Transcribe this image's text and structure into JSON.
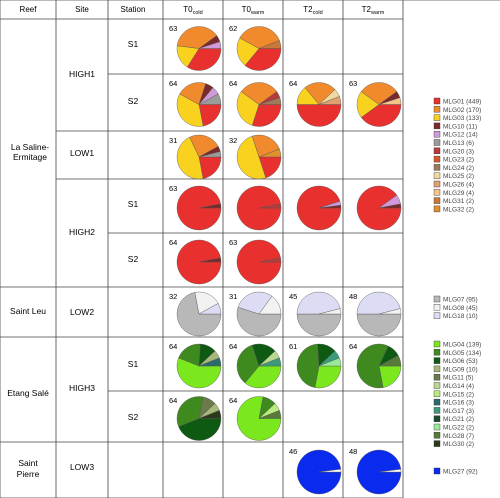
{
  "header": {
    "reef": "Reef",
    "site": "Site",
    "station": "Station",
    "t0_cold": "T0",
    "t0_cold_sub": "cold",
    "t0_warm": "T0",
    "t0_warm_sub": "warm",
    "t2_cold": "T2",
    "t2_cold_sub": "cold",
    "t2_warm": "T2",
    "t2_warm_sub": "warm"
  },
  "reefs": [
    {
      "name_line1": "La Saline-",
      "name_line2": "Ermitage"
    },
    {
      "name_line1": "Saint Leu",
      "name_line2": ""
    },
    {
      "name_line1": "Etang Salé",
      "name_line2": ""
    },
    {
      "name_line1": "Saint",
      "name_line2": "Pierre"
    }
  ],
  "sites": [
    "HIGH1",
    "LOW1",
    "HIGH2",
    "LOW2",
    "HIGH3",
    "LOW3"
  ],
  "stations": [
    "S1",
    "S2",
    "S1",
    "S2",
    "S1",
    "S2"
  ],
  "counts": {
    "r0": [
      "63",
      "62",
      "",
      ""
    ],
    "r1": [
      "64",
      "64",
      "64",
      "63"
    ],
    "r2": [
      "31",
      "32",
      "",
      ""
    ],
    "r3": [
      "63",
      "",
      "",
      ""
    ],
    "r4": [
      "64",
      "63",
      "",
      ""
    ],
    "r5": [
      "32",
      "31",
      "45",
      "48"
    ],
    "r6": [
      "64",
      "64",
      "61",
      "64"
    ],
    "r7": [
      "64",
      "64",
      "",
      ""
    ],
    "r8": [
      "",
      "",
      "46",
      "48"
    ]
  },
  "legends": {
    "clade_c": [
      {
        "label": "MLG01 (449)",
        "color": "#e8302e"
      },
      {
        "label": "MLG02 (170)",
        "color": "#f08a2c"
      },
      {
        "label": "MLG03 (133)",
        "color": "#f8d21e"
      },
      {
        "label": "MLG10 (11)",
        "color": "#7a2a2a"
      },
      {
        "label": "MLG12 (14)",
        "color": "#d09ad8"
      },
      {
        "label": "MLG13 (6)",
        "color": "#9b9b9b"
      },
      {
        "label": "MLG20 (3)",
        "color": "#b83a3a"
      },
      {
        "label": "MLG23 (2)",
        "color": "#d45a2a"
      },
      {
        "label": "MLG24 (2)",
        "color": "#a07a5a"
      },
      {
        "label": "MLG25 (2)",
        "color": "#f0d8a0"
      },
      {
        "label": "MLG26 (4)",
        "color": "#e0a070"
      },
      {
        "label": "MLG29 (4)",
        "color": "#f4c488"
      },
      {
        "label": "MLG31 (2)",
        "color": "#c87838"
      },
      {
        "label": "MLG32 (2)",
        "color": "#e0902a"
      }
    ],
    "clade_gray": [
      {
        "label": "MLG07 (95)",
        "color": "#b8b8b8"
      },
      {
        "label": "MLG08 (45)",
        "color": "#f2f2f2"
      },
      {
        "label": "MLG18 (10)",
        "color": "#dcdcf4"
      }
    ],
    "clade_green": [
      {
        "label": "MLG04 (139)",
        "color": "#7be81e"
      },
      {
        "label": "MLG05 (134)",
        "color": "#3f8a1e"
      },
      {
        "label": "MLG06 (53)",
        "color": "#0e5a12"
      },
      {
        "label": "MLG09 (10)",
        "color": "#a8b878"
      },
      {
        "label": "MLG11 (5)",
        "color": "#6a7a4a"
      },
      {
        "label": "MLG14 (4)",
        "color": "#b8d890"
      },
      {
        "label": "MLG15 (2)",
        "color": "#b8ec7c"
      },
      {
        "label": "MLG16 (3)",
        "color": "#2a6a6a"
      },
      {
        "label": "MLG17 (3)",
        "color": "#3a9a7a"
      },
      {
        "label": "MLG21 (2)",
        "color": "#1a4a2a"
      },
      {
        "label": "MLG22 (2)",
        "color": "#9ae89a"
      },
      {
        "label": "MLG28 (7)",
        "color": "#587a38"
      },
      {
        "label": "MLG30 (2)",
        "color": "#2a3a1a"
      }
    ],
    "clade_blue": [
      {
        "label": "MLG27 (92)",
        "color": "#0a2aee"
      }
    ]
  },
  "pies": [
    {
      "row": 0,
      "col": 0,
      "slices": [
        {
          "c": "#e8302e",
          "v": 0.34
        },
        {
          "c": "#f8d21e",
          "v": 0.18
        },
        {
          "c": "#f08a2c",
          "v": 0.38
        },
        {
          "c": "#7a2a2a",
          "v": 0.05
        },
        {
          "c": "#d09ad8",
          "v": 0.05
        }
      ]
    },
    {
      "row": 0,
      "col": 1,
      "slices": [
        {
          "c": "#e8302e",
          "v": 0.36
        },
        {
          "c": "#f8d21e",
          "v": 0.22
        },
        {
          "c": "#f08a2c",
          "v": 0.36
        },
        {
          "c": "#c87838",
          "v": 0.06
        }
      ]
    },
    {
      "row": 1,
      "col": 0,
      "slices": [
        {
          "c": "#e8302e",
          "v": 0.22
        },
        {
          "c": "#f8d21e",
          "v": 0.36
        },
        {
          "c": "#f08a2c",
          "v": 0.22
        },
        {
          "c": "#7a2a2a",
          "v": 0.06
        },
        {
          "c": "#d09ad8",
          "v": 0.06
        },
        {
          "c": "#9b9b9b",
          "v": 0.08
        }
      ]
    },
    {
      "row": 1,
      "col": 1,
      "slices": [
        {
          "c": "#e8302e",
          "v": 0.3
        },
        {
          "c": "#f8d21e",
          "v": 0.3
        },
        {
          "c": "#f08a2c",
          "v": 0.3
        },
        {
          "c": "#b83a3a",
          "v": 0.05
        },
        {
          "c": "#a07a5a",
          "v": 0.05
        }
      ]
    },
    {
      "row": 1,
      "col": 2,
      "slices": [
        {
          "c": "#e8302e",
          "v": 0.5
        },
        {
          "c": "#f8d21e",
          "v": 0.14
        },
        {
          "c": "#f08a2c",
          "v": 0.24
        },
        {
          "c": "#f0d8a0",
          "v": 0.06
        },
        {
          "c": "#e0a070",
          "v": 0.06
        }
      ]
    },
    {
      "row": 1,
      "col": 3,
      "slices": [
        {
          "c": "#e8302e",
          "v": 0.4
        },
        {
          "c": "#f8d21e",
          "v": 0.2
        },
        {
          "c": "#f08a2c",
          "v": 0.3
        },
        {
          "c": "#7a2a2a",
          "v": 0.05
        },
        {
          "c": "#f4c488",
          "v": 0.05
        }
      ]
    },
    {
      "row": 2,
      "col": 0,
      "slices": [
        {
          "c": "#e8302e",
          "v": 0.22
        },
        {
          "c": "#f8d21e",
          "v": 0.46
        },
        {
          "c": "#f08a2c",
          "v": 0.24
        },
        {
          "c": "#7a2a2a",
          "v": 0.04
        },
        {
          "c": "#9b9b9b",
          "v": 0.04
        }
      ]
    },
    {
      "row": 2,
      "col": 1,
      "slices": [
        {
          "c": "#e8302e",
          "v": 0.2
        },
        {
          "c": "#f8d21e",
          "v": 0.5
        },
        {
          "c": "#f08a2c",
          "v": 0.24
        },
        {
          "c": "#e0902a",
          "v": 0.06
        }
      ]
    },
    {
      "row": 3,
      "col": 0,
      "slices": [
        {
          "c": "#e8302e",
          "v": 0.97
        },
        {
          "c": "#7a2a2a",
          "v": 0.03
        }
      ]
    },
    {
      "row": 3,
      "col": 1,
      "slices": [
        {
          "c": "#e8302e",
          "v": 0.97
        },
        {
          "c": "#b83a3a",
          "v": 0.03
        }
      ]
    },
    {
      "row": 3,
      "col": 2,
      "slices": [
        {
          "c": "#e8302e",
          "v": 0.95
        },
        {
          "c": "#d09ad8",
          "v": 0.03
        },
        {
          "c": "#7a2a2a",
          "v": 0.02
        }
      ]
    },
    {
      "row": 3,
      "col": 3,
      "slices": [
        {
          "c": "#e8302e",
          "v": 0.9
        },
        {
          "c": "#d09ad8",
          "v": 0.07
        },
        {
          "c": "#7a2a2a",
          "v": 0.03
        }
      ]
    },
    {
      "row": 4,
      "col": 0,
      "slices": [
        {
          "c": "#e8302e",
          "v": 0.97
        },
        {
          "c": "#7a2a2a",
          "v": 0.03
        }
      ]
    },
    {
      "row": 4,
      "col": 1,
      "slices": [
        {
          "c": "#e8302e",
          "v": 0.97
        },
        {
          "c": "#b83a3a",
          "v": 0.03
        }
      ]
    },
    {
      "row": 5,
      "col": 0,
      "slices": [
        {
          "c": "#b8b8b8",
          "v": 0.72
        },
        {
          "c": "#f2f2f2",
          "v": 0.2
        },
        {
          "c": "#dcdcf4",
          "v": 0.08
        }
      ]
    },
    {
      "row": 5,
      "col": 1,
      "slices": [
        {
          "c": "#b8b8b8",
          "v": 0.55
        },
        {
          "c": "#dcdcf4",
          "v": 0.3
        },
        {
          "c": "#f2f2f2",
          "v": 0.15
        }
      ]
    },
    {
      "row": 5,
      "col": 2,
      "slices": [
        {
          "c": "#b8b8b8",
          "v": 0.5
        },
        {
          "c": "#dcdcf4",
          "v": 0.46
        },
        {
          "c": "#f2f2f2",
          "v": 0.04
        }
      ]
    },
    {
      "row": 5,
      "col": 3,
      "slices": [
        {
          "c": "#b8b8b8",
          "v": 0.5
        },
        {
          "c": "#dcdcf4",
          "v": 0.46
        },
        {
          "c": "#f2f2f2",
          "v": 0.04
        }
      ]
    },
    {
      "row": 6,
      "col": 0,
      "slices": [
        {
          "c": "#7be81e",
          "v": 0.56
        },
        {
          "c": "#3f8a1e",
          "v": 0.2
        },
        {
          "c": "#0e5a12",
          "v": 0.12
        },
        {
          "c": "#a8b878",
          "v": 0.06
        },
        {
          "c": "#2a6a6a",
          "v": 0.06
        }
      ]
    },
    {
      "row": 6,
      "col": 1,
      "slices": [
        {
          "c": "#7be81e",
          "v": 0.36
        },
        {
          "c": "#3f8a1e",
          "v": 0.34
        },
        {
          "c": "#0e5a12",
          "v": 0.18
        },
        {
          "c": "#b8d890",
          "v": 0.06
        },
        {
          "c": "#3a9a7a",
          "v": 0.06
        }
      ]
    },
    {
      "row": 6,
      "col": 2,
      "slices": [
        {
          "c": "#7be81e",
          "v": 0.28
        },
        {
          "c": "#3f8a1e",
          "v": 0.46
        },
        {
          "c": "#0e5a12",
          "v": 0.14
        },
        {
          "c": "#3a9a7a",
          "v": 0.06
        },
        {
          "c": "#9ae89a",
          "v": 0.06
        }
      ]
    },
    {
      "row": 6,
      "col": 3,
      "slices": [
        {
          "c": "#7be81e",
          "v": 0.22
        },
        {
          "c": "#3f8a1e",
          "v": 0.6
        },
        {
          "c": "#0e5a12",
          "v": 0.1
        },
        {
          "c": "#587a38",
          "v": 0.08
        }
      ]
    },
    {
      "row": 7,
      "col": 0,
      "slices": [
        {
          "c": "#0e5a12",
          "v": 0.44
        },
        {
          "c": "#3f8a1e",
          "v": 0.34
        },
        {
          "c": "#6a7a4a",
          "v": 0.1
        },
        {
          "c": "#a8b878",
          "v": 0.06
        },
        {
          "c": "#2a3a1a",
          "v": 0.06
        }
      ]
    },
    {
      "row": 7,
      "col": 1,
      "slices": [
        {
          "c": "#7be81e",
          "v": 0.78
        },
        {
          "c": "#3f8a1e",
          "v": 0.1
        },
        {
          "c": "#b8ec7c",
          "v": 0.06
        },
        {
          "c": "#587a38",
          "v": 0.06
        }
      ]
    },
    {
      "row": 8,
      "col": 2,
      "slices": [
        {
          "c": "#0a2aee",
          "v": 0.98
        },
        {
          "c": "#ffffff",
          "v": 0.02
        }
      ]
    },
    {
      "row": 8,
      "col": 3,
      "slices": [
        {
          "c": "#0a2aee",
          "v": 0.98
        },
        {
          "c": "#ffffff",
          "v": 0.02
        }
      ]
    }
  ]
}
